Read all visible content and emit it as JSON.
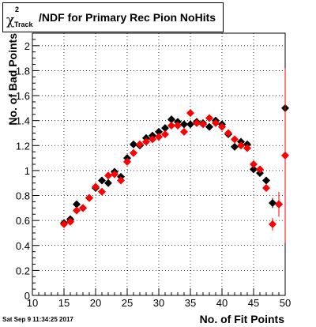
{
  "title": {
    "symbol": "χ",
    "superscript": "2",
    "subscript": "Track",
    "text": "/NDF for Primary Rec Pion NoHits"
  },
  "timestamp": "Sat Sep  9 11:34:25 2017",
  "chart_data": {
    "type": "scatter",
    "xlabel": "No. of Fit Points",
    "ylabel": "No. of Bad Points",
    "xlim": [
      10,
      50
    ],
    "ylim": [
      0,
      2.1
    ],
    "x_ticks": [
      "10",
      "15",
      "20",
      "25",
      "30",
      "35",
      "40",
      "45",
      "50"
    ],
    "y_ticks": [
      "0",
      "0.2",
      "0.4",
      "0.6",
      "0.8",
      "1",
      "1.2",
      "1.4",
      "1.6",
      "1.8",
      "2"
    ],
    "grid": true,
    "series": [
      {
        "color": "#000000",
        "marker": "diamond",
        "points": [
          {
            "x": 15,
            "y": 0.58
          },
          {
            "x": 16,
            "y": 0.61
          },
          {
            "x": 17,
            "y": 0.73
          },
          {
            "x": 18,
            "y": 0.7
          },
          {
            "x": 19,
            "y": 0.78
          },
          {
            "x": 20,
            "y": 0.86
          },
          {
            "x": 21,
            "y": 0.92
          },
          {
            "x": 22,
            "y": 0.9
          },
          {
            "x": 23,
            "y": 0.99
          },
          {
            "x": 24,
            "y": 0.95
          },
          {
            "x": 25,
            "y": 1.1
          },
          {
            "x": 26,
            "y": 1.21
          },
          {
            "x": 27,
            "y": 1.2
          },
          {
            "x": 28,
            "y": 1.26
          },
          {
            "x": 29,
            "y": 1.28
          },
          {
            "x": 30,
            "y": 1.31
          },
          {
            "x": 31,
            "y": 1.34
          },
          {
            "x": 32,
            "y": 1.41
          },
          {
            "x": 33,
            "y": 1.39
          },
          {
            "x": 34,
            "y": 1.37
          },
          {
            "x": 35,
            "y": 1.37
          },
          {
            "x": 36,
            "y": 1.39
          },
          {
            "x": 37,
            "y": 1.38
          },
          {
            "x": 38,
            "y": 1.35
          },
          {
            "x": 39,
            "y": 1.4
          },
          {
            "x": 40,
            "y": 1.37
          },
          {
            "x": 41,
            "y": 1.29
          },
          {
            "x": 42,
            "y": 1.19
          },
          {
            "x": 43,
            "y": 1.23
          },
          {
            "x": 44,
            "y": 1.21
          },
          {
            "x": 45,
            "y": 1.01
          },
          {
            "x": 46,
            "y": 0.98
          },
          {
            "x": 47,
            "y": 0.92
          },
          {
            "x": 48,
            "y": 0.74,
            "err": 0.04
          },
          {
            "x": 49,
            "y": 0.73,
            "err": 0.08
          },
          {
            "x": 50,
            "y": 1.5,
            "err": 0.55
          }
        ]
      },
      {
        "color": "#ff0000",
        "marker": "diamond",
        "points": [
          {
            "x": 15,
            "y": 0.57
          },
          {
            "x": 16,
            "y": 0.59
          },
          {
            "x": 17,
            "y": 0.68
          },
          {
            "x": 18,
            "y": 0.7
          },
          {
            "x": 19,
            "y": 0.78
          },
          {
            "x": 20,
            "y": 0.87
          },
          {
            "x": 21,
            "y": 0.83
          },
          {
            "x": 22,
            "y": 0.96
          },
          {
            "x": 23,
            "y": 0.97
          },
          {
            "x": 24,
            "y": 0.92
          },
          {
            "x": 25,
            "y": 1.07
          },
          {
            "x": 26,
            "y": 1.14
          },
          {
            "x": 27,
            "y": 1.21
          },
          {
            "x": 28,
            "y": 1.23
          },
          {
            "x": 29,
            "y": 1.25
          },
          {
            "x": 30,
            "y": 1.27
          },
          {
            "x": 31,
            "y": 1.29
          },
          {
            "x": 32,
            "y": 1.36
          },
          {
            "x": 33,
            "y": 1.36
          },
          {
            "x": 34,
            "y": 1.31
          },
          {
            "x": 35,
            "y": 1.46
          },
          {
            "x": 36,
            "y": 1.38
          },
          {
            "x": 37,
            "y": 1.37
          },
          {
            "x": 38,
            "y": 1.42
          },
          {
            "x": 39,
            "y": 1.38
          },
          {
            "x": 40,
            "y": 1.35
          },
          {
            "x": 41,
            "y": 1.3
          },
          {
            "x": 42,
            "y": 1.25
          },
          {
            "x": 43,
            "y": 1.2
          },
          {
            "x": 44,
            "y": 1.18
          },
          {
            "x": 45,
            "y": 1.05
          },
          {
            "x": 46,
            "y": 1.01
          },
          {
            "x": 47,
            "y": 0.86
          },
          {
            "x": 48,
            "y": 0.57,
            "err": 0.05
          },
          {
            "x": 49,
            "y": 0.73,
            "err": 0.1
          },
          {
            "x": 50,
            "y": 1.12,
            "err": 0.7
          }
        ]
      }
    ]
  }
}
